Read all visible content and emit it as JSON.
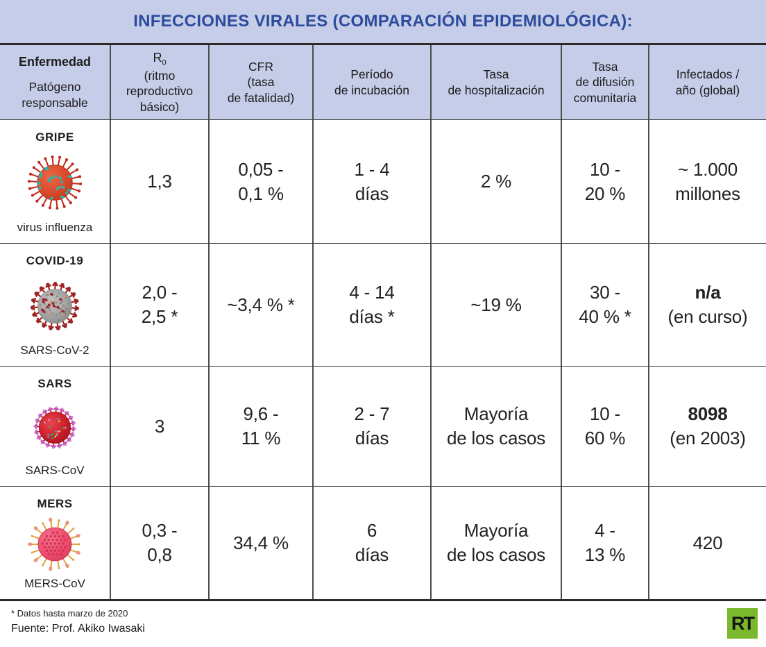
{
  "title": "INFECCIONES VIRALES (COMPARACIÓN EPIDEMIOLÓGICA):",
  "colors": {
    "title_bar_bg": "#c6cde8",
    "title_text": "#2c4b9d",
    "table_border": "#4d4d4d",
    "heavy_border": "#2b2b2b",
    "rt_green": "#79b92b"
  },
  "table": {
    "headers": {
      "disease": {
        "line1": "Enfermedad",
        "rest": "Patógeno\nresponsable"
      },
      "r0": {
        "symbol": "R",
        "sub": "0",
        "rest": "(ritmo\nreproductivo\nbásico)"
      },
      "cfr": "CFR\n(tasa\nde fatalidad)",
      "incubation": "Período\nde incubación",
      "hospitalization": "Tasa\nde hospitalización",
      "community_spread": "Tasa\nde difusión\ncomunitaria",
      "infected": "Infectados /\naño (global)"
    },
    "rows": [
      {
        "disease": "GRIPE",
        "pathogen": "virus influenza",
        "icon": {
          "name": "influenza-virus-icon",
          "style": "influenza",
          "body_light": "#ec6a45",
          "body": "#d84a2d",
          "body_dark": "#b5361c",
          "spike": "#c1281b",
          "accent": "#2fb4a6"
        },
        "cells": {
          "r0": "1,3",
          "cfr": "0,05 -\n0,1 %",
          "incubation": "1 - 4\ndías",
          "hospitalization": "2 %",
          "community_spread": "10 -\n20 %",
          "infected_main": "~ 1.000\nmillones",
          "infected_sub": ""
        }
      },
      {
        "disease": "COVID-19",
        "pathogen": "SARS-CoV-2",
        "icon": {
          "name": "sars-cov-2-virus-icon",
          "style": "covid",
          "body_light": "#c6c6c6",
          "body": "#a3a3a3",
          "body_dark": "#848484",
          "spike": "#9e2222",
          "accent": "#e0813f"
        },
        "cells": {
          "r0": "2,0 -\n2,5 *",
          "cfr": "~3,4 % *",
          "incubation": "4 - 14\ndías *",
          "hospitalization": "~19 %",
          "community_spread": "30 -\n40 % *",
          "infected_main": "n/a",
          "infected_sub": "(en curso)"
        }
      },
      {
        "disease": "SARS",
        "pathogen": "SARS-CoV",
        "icon": {
          "name": "sars-cov-virus-icon",
          "style": "sars",
          "body_light": "#e64a50",
          "body": "#cf1f2c",
          "body_dark": "#9d1220",
          "spike": "#c75ab8",
          "accent": "#3fae4c"
        },
        "cells": {
          "r0": "3",
          "cfr": "9,6 -\n11 %",
          "incubation": "2 - 7\ndías",
          "hospitalization": "Mayoría\nde los casos",
          "community_spread": "10 -\n60 %",
          "infected_main": "8098",
          "infected_sub": "(en 2003)"
        }
      },
      {
        "disease": "MERS",
        "pathogen": "MERS-CoV",
        "icon": {
          "name": "mers-cov-virus-icon",
          "style": "mers",
          "body_light": "#f47b93",
          "body": "#ee506f",
          "body_dark": "#d63358",
          "spike": "#e39a2e",
          "accent": "#ee8d9b"
        },
        "cells": {
          "r0": "0,3 -\n0,8",
          "cfr": "34,4 %",
          "incubation": "6\ndías",
          "hospitalization": "Mayoría\nde los casos",
          "community_spread": "4 -\n13 %",
          "infected_main": "420",
          "infected_sub": ""
        }
      }
    ]
  },
  "footer": {
    "note": "* Datos hasta marzo de 2020",
    "source": "Fuente: Prof. Akiko Iwasaki",
    "logo_text": "RT"
  },
  "chart_data": {
    "type": "table",
    "title": "INFECCIONES VIRALES (COMPARACIÓN EPIDEMIOLÓGICA):",
    "columns": [
      "Enfermedad / Patógeno responsable",
      "R0 (ritmo reproductivo básico)",
      "CFR (tasa de fatalidad)",
      "Período de incubación",
      "Tasa de hospitalización",
      "Tasa de difusión comunitaria",
      "Infectados / año (global)"
    ],
    "rows": [
      [
        "GRIPE (virus influenza)",
        "1,3",
        "0,05 - 0,1 %",
        "1 - 4 días",
        "2 %",
        "10 - 20 %",
        "~ 1.000 millones"
      ],
      [
        "COVID-19 (SARS-CoV-2)",
        "2,0 - 2,5 *",
        "~3,4 % *",
        "4 - 14 días *",
        "~19 %",
        "30 - 40 % *",
        "n/a (en curso)"
      ],
      [
        "SARS (SARS-CoV)",
        "3",
        "9,6 - 11 %",
        "2 - 7 días",
        "Mayoría de los casos",
        "10 - 60 %",
        "8098 (en 2003)"
      ],
      [
        "MERS (MERS-CoV)",
        "0,3 - 0,8",
        "34,4 %",
        "6 días",
        "Mayoría de los casos",
        "4 - 13 %",
        "420"
      ]
    ],
    "footnote": "* Datos hasta marzo de 2020",
    "source": "Fuente: Prof. Akiko Iwasaki"
  }
}
